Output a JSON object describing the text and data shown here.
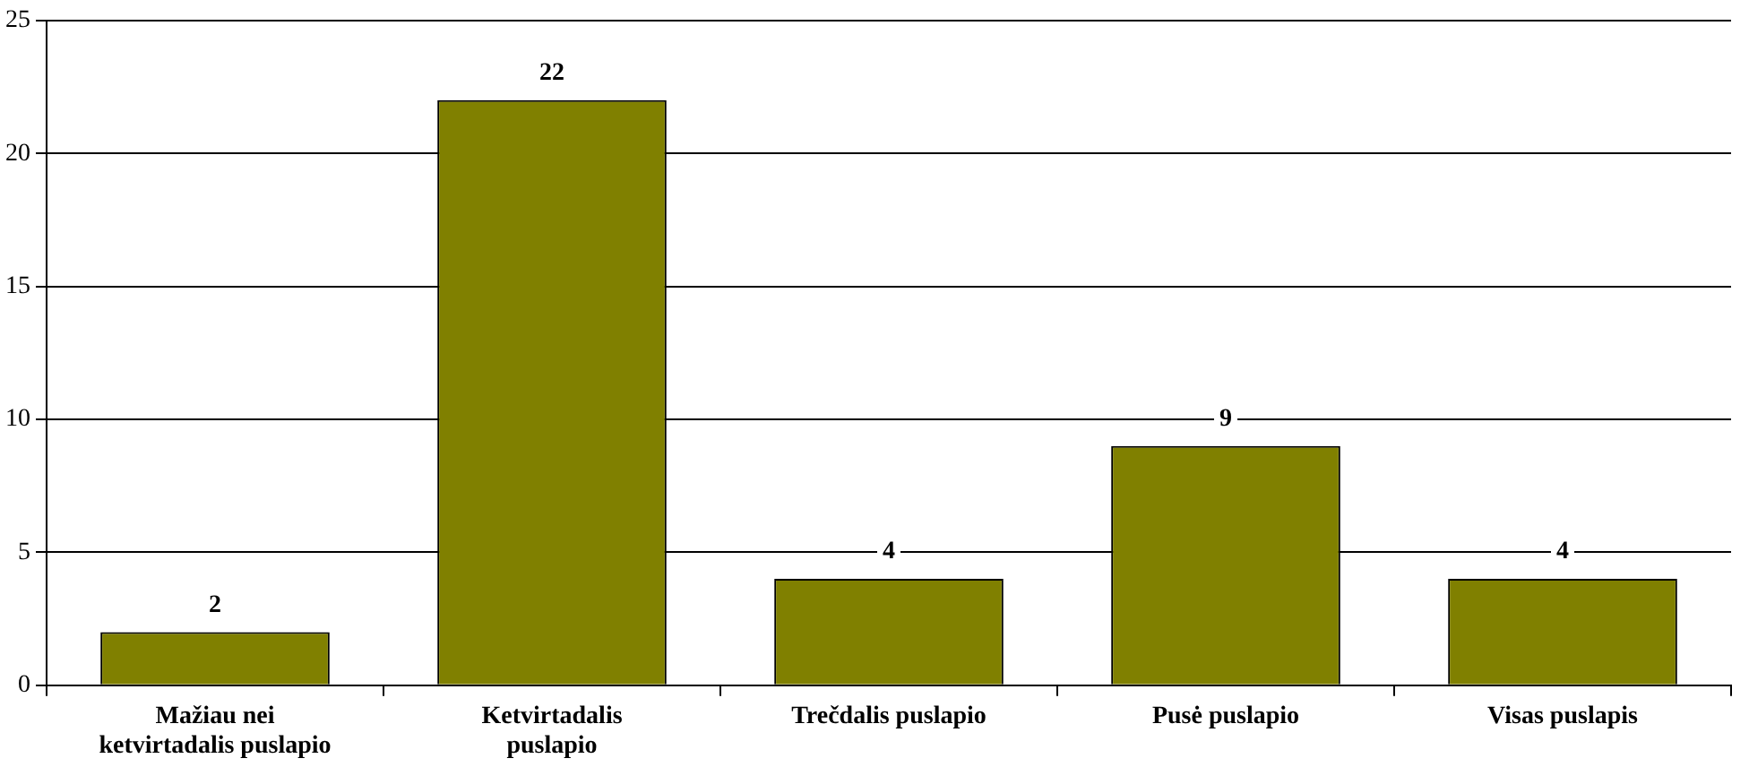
{
  "chart_data": {
    "type": "bar",
    "categories": [
      "Mažiau nei ketvirtadalis puslapio",
      "Ketvirtadalis puslapio",
      "Trečdalis puslapio",
      "Pusė puslapio",
      "Visas puslapis"
    ],
    "values": [
      2,
      22,
      4,
      9,
      4
    ],
    "color": "#808000",
    "ylim": [
      0,
      25
    ],
    "yticks": [
      0,
      5,
      10,
      15,
      20,
      25
    ],
    "grid": "y",
    "data_labels": true,
    "legend": false
  }
}
